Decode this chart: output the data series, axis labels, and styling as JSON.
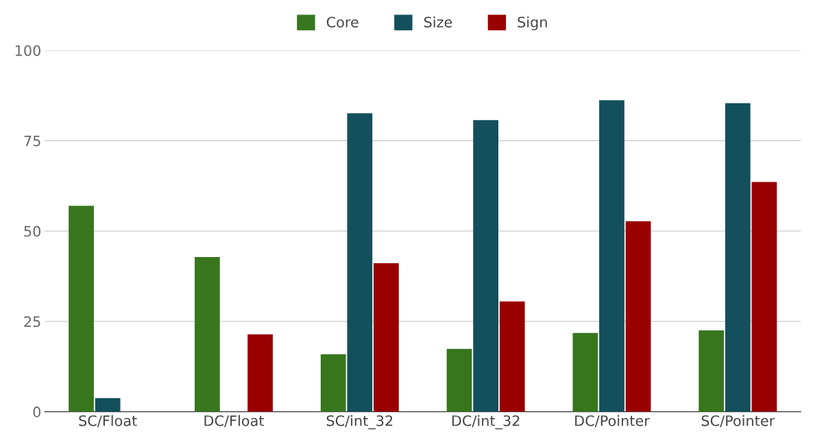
{
  "chart_data": {
    "type": "bar",
    "categories": [
      "SC/Float",
      "DC/Float",
      "SC/int_32",
      "DC/int_32",
      "DC/Pointer",
      "SC/Pointer"
    ],
    "series": [
      {
        "name": "Core",
        "color": "#38761d",
        "values": [
          57.0,
          42.8,
          15.9,
          17.4,
          21.8,
          22.5
        ]
      },
      {
        "name": "Size",
        "color": "#134f5c",
        "values": [
          3.8,
          null,
          82.6,
          80.7,
          86.2,
          85.4
        ]
      },
      {
        "name": "Sign",
        "color": "#990000",
        "values": [
          null,
          21.4,
          41.1,
          30.5,
          52.7,
          63.6
        ]
      }
    ],
    "ylim": [
      0,
      100
    ],
    "yticks": [
      0,
      25,
      50,
      75,
      100
    ],
    "grid": "y",
    "legend": "top"
  }
}
